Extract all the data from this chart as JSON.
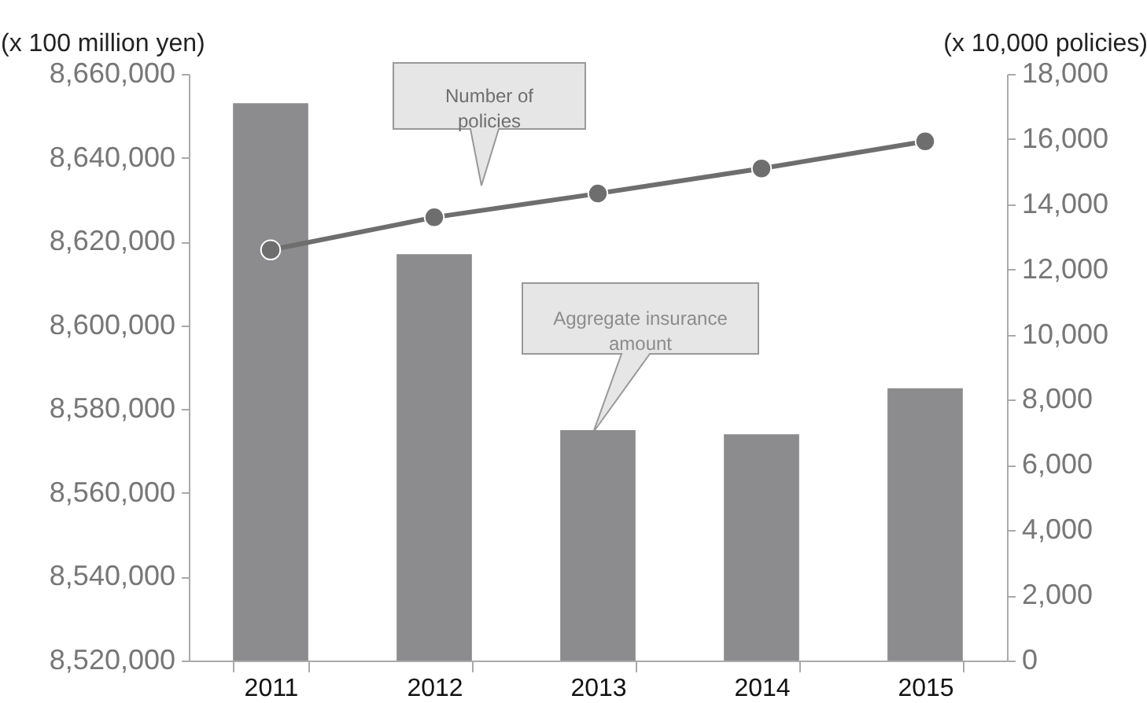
{
  "chart_data": {
    "type": "bar",
    "ylabel": "(x 100 million yen)",
    "y2label": "(x 10,000 policies)",
    "categories": [
      "2011",
      "2012",
      "2013",
      "2014",
      "2015"
    ],
    "series": [
      {
        "name": "Aggregate insurance\namount",
        "color": "#8c8c8e",
        "values": [
          8653000,
          8617000,
          8575000,
          8574000,
          8585000
        ]
      },
      {
        "name": "Number of\npolicies",
        "type": "line",
        "axis": "y2",
        "color": "#6e6e6e",
        "values": [
          12600,
          13600,
          14330,
          15100,
          15930
        ]
      }
    ],
    "ylim": [
      8520000,
      8660000
    ],
    "yticks": [
      {
        "value": 8520000,
        "label": "8,520,000"
      },
      {
        "value": 8540000,
        "label": "8,540,000"
      },
      {
        "value": 8560000,
        "label": "8,560,000"
      },
      {
        "value": 8580000,
        "label": "8,580,000"
      },
      {
        "value": 8600000,
        "label": "8,600,000"
      },
      {
        "value": 8620000,
        "label": "8,620,000"
      },
      {
        "value": 8640000,
        "label": "8,640,000"
      },
      {
        "value": 8660000,
        "label": "8,660,000"
      }
    ],
    "y2lim": [
      0,
      18000
    ],
    "y2ticks": [
      0,
      {
        "value": 2000,
        "label": "2,000"
      },
      {
        "value": 4000,
        "label": "4,000"
      },
      {
        "value": 6000,
        "label": "6,000"
      },
      {
        "value": 8000,
        "label": "8,000"
      },
      {
        "value": 10000,
        "label": "10,000"
      },
      {
        "value": 12000,
        "label": "12,000"
      },
      {
        "value": 14000,
        "label": "14,000"
      },
      {
        "value": 16000,
        "label": "16,000"
      },
      {
        "value": 18000,
        "label": "18,000"
      }
    ],
    "grid": false,
    "legend": false,
    "marker": "circle",
    "line_style": "solid"
  }
}
